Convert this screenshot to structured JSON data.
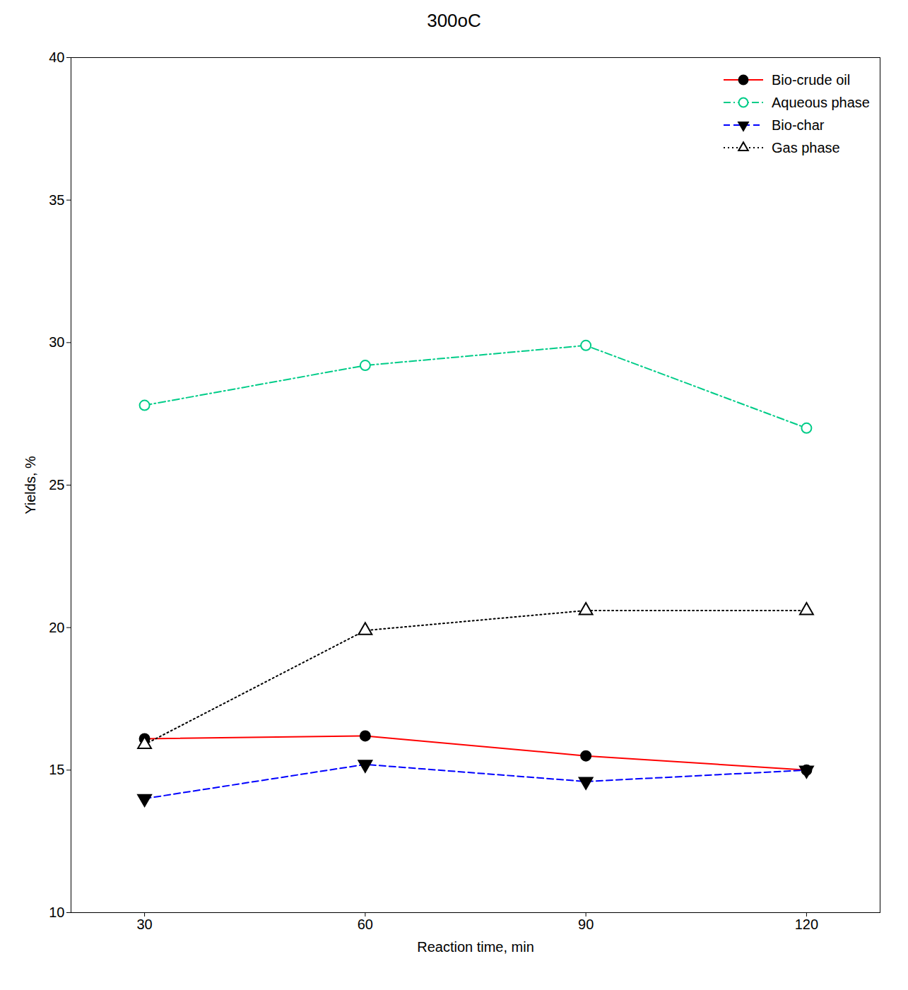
{
  "chart_data": {
    "type": "line",
    "title": "300oC",
    "xlabel": "Reaction time, min",
    "ylabel": "Yields, %",
    "x": [
      30,
      60,
      90,
      120
    ],
    "series": [
      {
        "name": "Bio-crude oil",
        "color": "#ff0000",
        "values": [
          16.1,
          16.2,
          15.5,
          15.0
        ],
        "marker": "circle",
        "line_style": "solid"
      },
      {
        "name": "Aqueous phase",
        "color": "#00cc88",
        "values": [
          27.8,
          29.2,
          29.9,
          27.0
        ],
        "marker": "circle-open",
        "line_style": "dashdot"
      },
      {
        "name": "Bio-char",
        "color": "#0000ff",
        "values": [
          14.0,
          15.2,
          14.6,
          15.0
        ],
        "marker": "triangle-down",
        "line_style": "dashed"
      },
      {
        "name": "Gas phase",
        "color": "#000000",
        "values": [
          15.9,
          19.9,
          20.6,
          20.6
        ],
        "marker": "triangle-up-open",
        "line_style": "dotted"
      }
    ],
    "xlim": [
      20,
      130
    ],
    "xticks": [
      30,
      60,
      90,
      120
    ],
    "ylim": [
      10,
      40
    ],
    "yticks": [
      10,
      15,
      20,
      25,
      30,
      35,
      40
    ],
    "legend": "upper right",
    "grid": false
  }
}
